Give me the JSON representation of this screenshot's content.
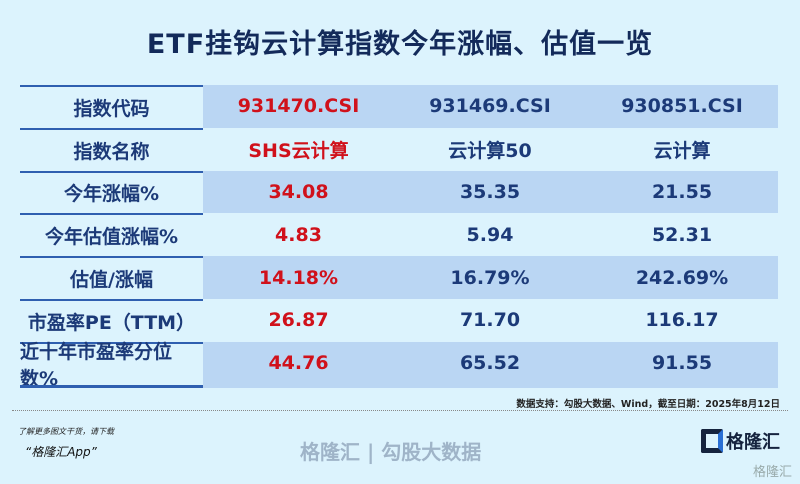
{
  "title": "ETF挂钩云计算指数今年涨幅、估值一览",
  "rows": [
    [
      "指数代码",
      "931470.CSI",
      "931469.CSI",
      "930851.CSI"
    ],
    [
      "指数名称",
      "SHS云计算",
      "云计算50",
      "云计算"
    ],
    [
      "今年涨幅%",
      "34.08",
      "35.35",
      "21.55"
    ],
    [
      "今年估值涨幅%",
      "4.83",
      "5.94",
      "52.31"
    ],
    [
      "估值/涨幅",
      "14.18%",
      "16.79%",
      "242.69%"
    ],
    [
      "市盈率PE（TTM）",
      "26.87",
      "71.70",
      "116.17"
    ],
    [
      "近十年市盈率分位数%",
      "44.76",
      "65.52",
      "91.55"
    ]
  ],
  "watermark": "格隆汇 | 勾股大数据",
  "source": "数据支持：勾股大数据、Wind，截至日期：2025年8月12日",
  "promo_line1": "了解更多图文干货，请下载",
  "promo_line2": "“格隆汇App”",
  "logo_text": "格隆汇",
  "corner_watermark": "格隆汇",
  "colors": {
    "highlight": "#d0111b",
    "navy": "#1c3a78",
    "band": "#bad6f3",
    "background": "#dcf3fd"
  }
}
